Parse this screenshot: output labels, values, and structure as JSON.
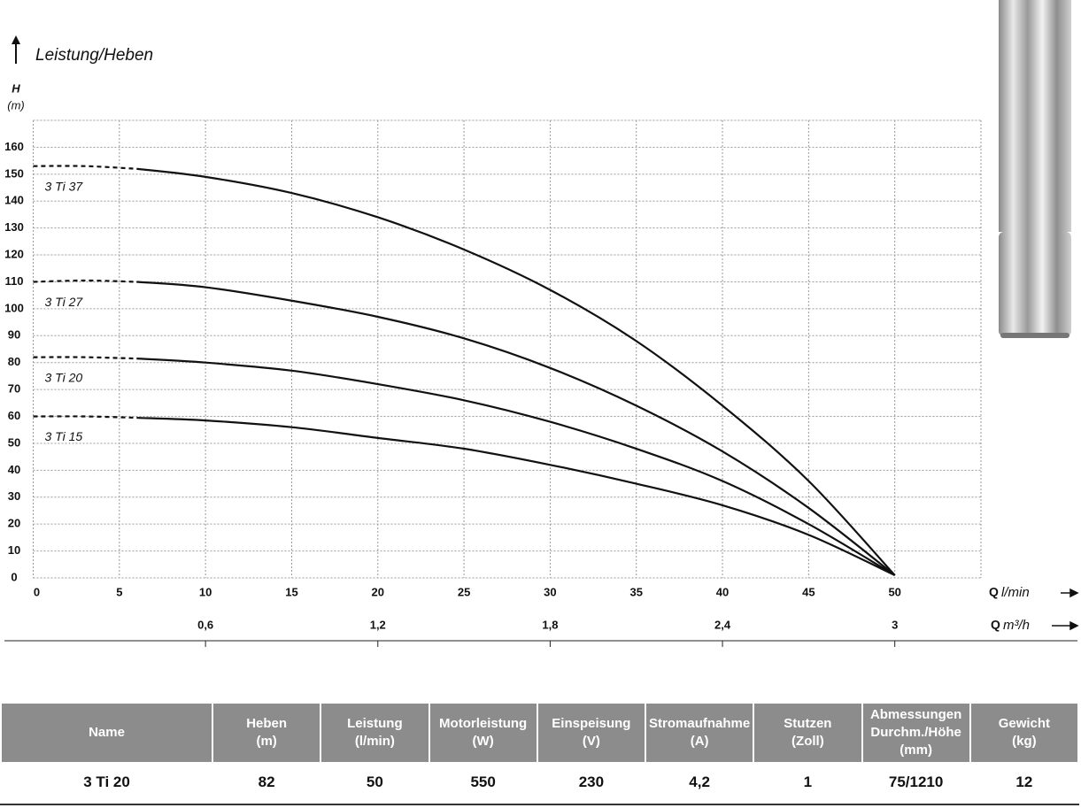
{
  "chart_data": {
    "type": "line",
    "title": "Leistung/Heben",
    "y_label": "H",
    "y_unit": "(m)",
    "x_label": {
      "symbol": "Q",
      "unit": "l/min"
    },
    "x2_label": {
      "symbol": "Q",
      "unit": "m³/h"
    },
    "x": [
      0,
      3,
      6,
      10,
      15,
      20,
      25,
      30,
      35,
      40,
      45,
      50
    ],
    "series": [
      {
        "name": "3 Ti 37",
        "color": "#111111",
        "values": [
          153,
          153,
          152,
          149,
          143,
          134,
          122,
          107,
          88,
          64,
          36,
          1
        ]
      },
      {
        "name": "3 Ti 27",
        "color": "#111111",
        "values": [
          110,
          110.5,
          110,
          108,
          103,
          97,
          89,
          78,
          64,
          47,
          26,
          1
        ]
      },
      {
        "name": "3 Ti 20",
        "color": "#111111",
        "values": [
          82,
          82,
          81.5,
          80,
          77,
          72,
          66,
          58,
          48,
          36,
          20,
          1
        ]
      },
      {
        "name": "3 Ti 15",
        "color": "#111111",
        "values": [
          60,
          60,
          59.5,
          58.5,
          56,
          52,
          48,
          42,
          35,
          27,
          16,
          1
        ]
      }
    ],
    "extrapolated_below_x": 6,
    "xlim": [
      0,
      55
    ],
    "xticks": [
      0,
      5,
      10,
      15,
      20,
      25,
      30,
      35,
      40,
      45,
      50
    ],
    "ylim": [
      0,
      170
    ],
    "yticks": [
      0,
      10,
      20,
      30,
      40,
      50,
      60,
      70,
      80,
      90,
      100,
      110,
      120,
      130,
      140,
      150,
      160
    ],
    "x2lim": [
      0,
      3.3
    ],
    "x2ticks": [
      {
        "value": 0.6,
        "label": "0,6"
      },
      {
        "value": 1.2,
        "label": "1,2"
      },
      {
        "value": 1.8,
        "label": "1,8"
      },
      {
        "value": 2.4,
        "label": "2,4"
      },
      3
    ],
    "grid": true
  },
  "table": {
    "header": [
      [
        "Name"
      ],
      [
        "Heben",
        "(m)"
      ],
      [
        "Leistung",
        "(l/min)"
      ],
      [
        "Motorleistung",
        "(W)"
      ],
      [
        "Einspeisung",
        "(V)"
      ],
      [
        "Stromaufnahme",
        "(A)"
      ],
      [
        "Stutzen",
        "(Zoll)"
      ],
      [
        "Abmessungen",
        "Durchm./Höhe",
        "(mm)"
      ],
      [
        "Gewicht",
        "(kg)"
      ]
    ],
    "rows": [
      [
        "3 Ti 20",
        "82",
        "50",
        "550",
        "230",
        "4,2",
        "1",
        "75/1210",
        "12"
      ]
    ]
  }
}
